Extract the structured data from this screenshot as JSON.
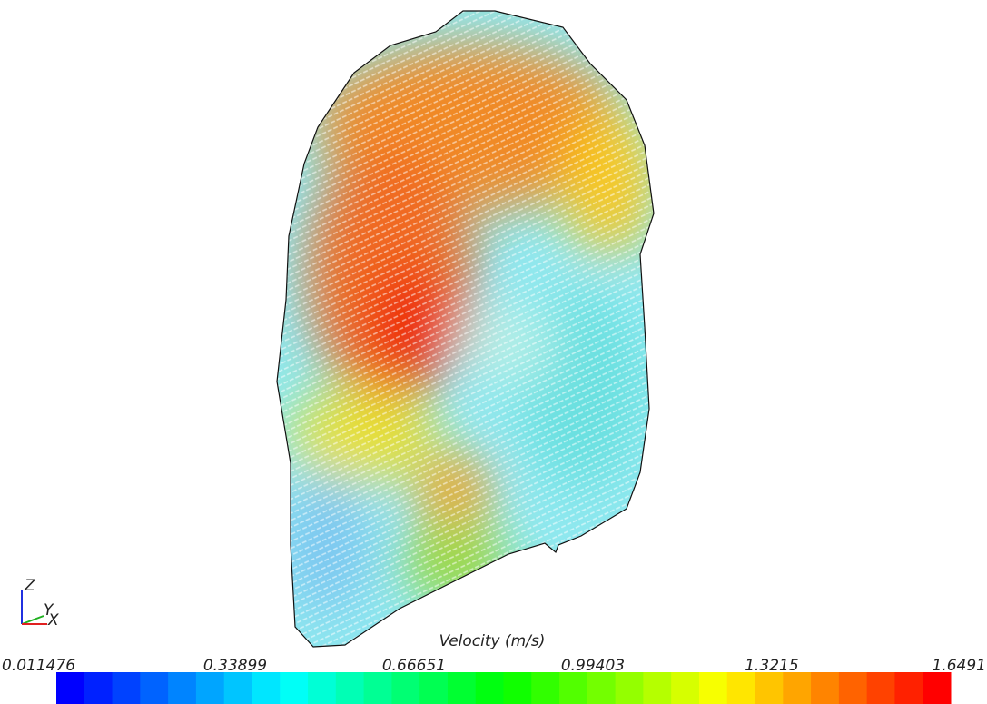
{
  "visualization": {
    "axes_triad": {
      "z": "Z",
      "y": "Y",
      "x": "X"
    },
    "colorbar": {
      "title": "Velocity (m/s)",
      "range": [
        0.011476,
        1.6491
      ],
      "ticks": [
        0.011476,
        0.33899,
        0.66651,
        0.99403,
        1.3215,
        1.6491
      ]
    }
  }
}
